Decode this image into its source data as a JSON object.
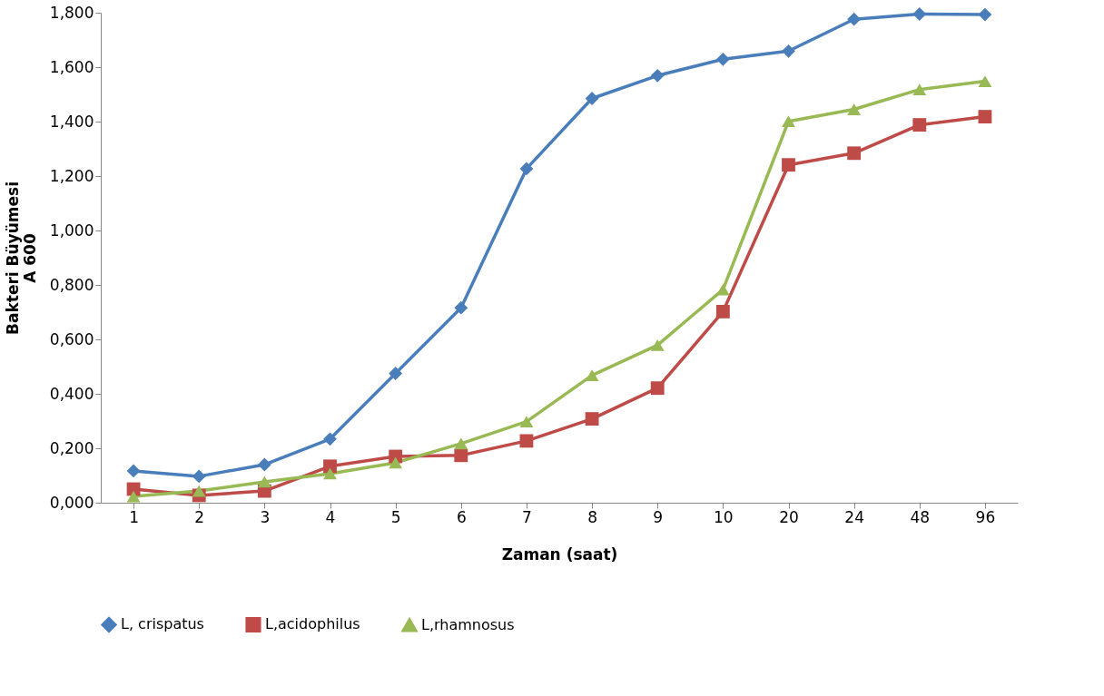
{
  "chart_data": {
    "type": "line",
    "xlabel": "Zaman (saat)",
    "ylabel": "Bakteri Büyümesi\nA 600",
    "categories": [
      "1",
      "2",
      "3",
      "4",
      "5",
      "6",
      "7",
      "8",
      "9",
      "10",
      "20",
      "24",
      "48",
      "96"
    ],
    "series": [
      {
        "name": "L, crispatus",
        "color": "#4a7ebb",
        "marker": "diamond",
        "values": [
          0.117,
          0.097,
          0.14,
          0.234,
          0.475,
          0.716,
          1.227,
          1.485,
          1.569,
          1.629,
          1.659,
          1.776,
          1.795,
          1.793
        ]
      },
      {
        "name": "L,acidophilus",
        "color": "#be4b48",
        "marker": "square",
        "values": [
          0.05,
          0.027,
          0.043,
          0.134,
          0.17,
          0.174,
          0.227,
          0.308,
          0.421,
          0.702,
          1.241,
          1.284,
          1.388,
          1.418
        ]
      },
      {
        "name": "L,rhamnosus",
        "color": "#98b954",
        "marker": "triangle",
        "values": [
          0.023,
          0.043,
          0.077,
          0.107,
          0.147,
          0.217,
          0.298,
          0.468,
          0.579,
          0.783,
          1.401,
          1.445,
          1.518,
          1.548
        ]
      }
    ],
    "ylim": [
      0,
      1.8
    ],
    "yticks": [
      {
        "value": 0,
        "label": "0,000"
      },
      {
        "value": 0.2,
        "label": "0,200"
      },
      {
        "value": 0.4,
        "label": "0,400"
      },
      {
        "value": 0.6,
        "label": "0,600"
      },
      {
        "value": 0.8,
        "label": "0,800"
      },
      {
        "value": 1.0,
        "label": "1,000"
      },
      {
        "value": 1.2,
        "label": "1,200"
      },
      {
        "value": 1.4,
        "label": "1,400"
      },
      {
        "value": 1.6,
        "label": "1,600"
      },
      {
        "value": 1.8,
        "label": "1,800"
      }
    ],
    "grid": false,
    "legend": "bottom",
    "line_style": "solid"
  }
}
